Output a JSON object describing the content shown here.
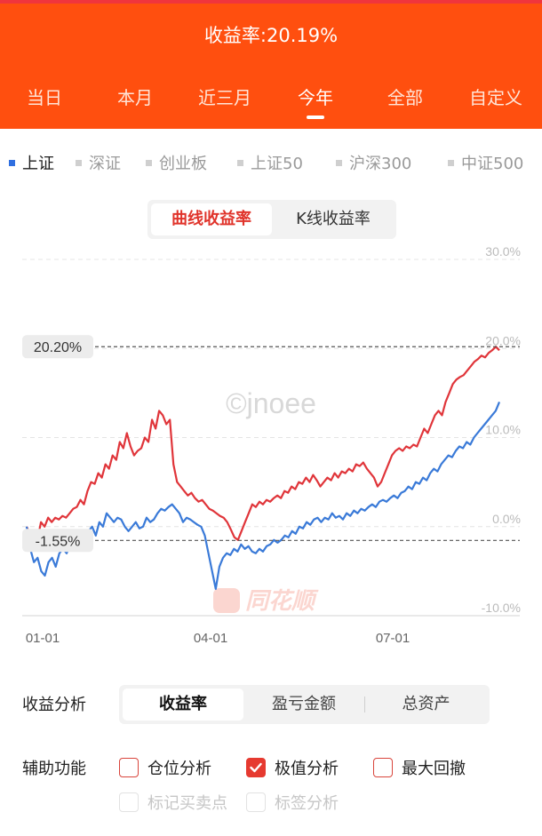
{
  "header": {
    "title": "收益率:20.19%",
    "period_tabs": [
      "当日",
      "本月",
      "近三月",
      "今年",
      "全部",
      "自定义"
    ],
    "active_period_tab": "今年"
  },
  "index_tabs": [
    "上证",
    "深证",
    "创业板",
    "上证50",
    "沪深300",
    "中证500"
  ],
  "active_index_tab": "上证",
  "chart_mode_tabs": [
    "曲线收益率",
    "K线收益率"
  ],
  "active_chart_mode": "曲线收益率",
  "watermark": "©jnoee",
  "logo_watermark": "同花顺",
  "chart_data": {
    "type": "line",
    "y_ticks": [
      "30.0%",
      "20.0%",
      "10.0%",
      "0.0%",
      "-10.0%"
    ],
    "ylim": [
      -10,
      30
    ],
    "x_ticks": [
      "01-01",
      "04-01",
      "07-01"
    ],
    "max_marker": {
      "label": "20.20%",
      "value": 20.2
    },
    "min_marker": {
      "label": "-1.55%",
      "value": -1.55
    },
    "series": [
      {
        "name": "收益率",
        "color": "#e0353a",
        "values": [
          0,
          -1,
          -0.5,
          -1.5,
          0.5,
          0,
          1,
          0.5,
          1,
          0.8,
          1.2,
          1,
          1.5,
          2,
          2.2,
          3,
          2.5,
          4,
          5,
          4.8,
          6,
          5.5,
          7,
          6.5,
          8,
          7.5,
          9.5,
          8.8,
          10.5,
          9,
          8,
          8.5,
          8.8,
          10,
          9.5,
          12,
          11,
          13,
          12.5,
          11.5,
          12,
          7,
          5,
          4.5,
          4,
          3.5,
          3.8,
          3.2,
          2.8,
          3,
          2.5,
          2,
          1.8,
          1.5,
          1.2,
          1,
          0.5,
          -0.3,
          -1.2,
          -1.5,
          -0.5,
          0.5,
          1.5,
          2.5,
          2.2,
          2.8,
          2.5,
          3,
          2.8,
          3.2,
          3.5,
          3.2,
          4,
          3.8,
          4.5,
          4.2,
          5,
          4.8,
          5.5,
          5,
          5.8,
          5.2,
          4.5,
          5,
          5.5,
          5.2,
          6,
          5.5,
          6.2,
          6,
          6.5,
          6.2,
          7,
          6.8,
          7.2,
          6.5,
          6,
          5.5,
          4.5,
          5,
          6,
          7,
          8,
          8.5,
          8.8,
          8.5,
          9,
          8.8,
          9.2,
          9,
          10,
          11,
          10.5,
          11.5,
          12.5,
          13,
          12.5,
          14,
          15,
          16,
          16.5,
          16.8,
          17,
          17.5,
          18,
          18.5,
          18.8,
          19.2,
          19,
          19.5,
          19.8,
          20.2,
          19.8
        ]
      },
      {
        "name": "上证",
        "color": "#3a7ad8",
        "values": [
          0,
          -2.5,
          -4,
          -3.5,
          -5,
          -5.5,
          -4,
          -3.5,
          -4.5,
          -3,
          -2.5,
          -3,
          -2,
          -2.5,
          -1.5,
          -2,
          -1,
          -0.5,
          0,
          -1,
          0.5,
          0,
          1.5,
          1,
          0.5,
          1,
          0.8,
          0,
          -0.5,
          0,
          0.5,
          -0.2,
          0,
          1,
          0.5,
          0.8,
          1.5,
          2,
          1.8,
          2.2,
          2.5,
          2,
          1.5,
          0.5,
          1,
          0.8,
          0.5,
          0.2,
          0,
          -1,
          -3,
          -5,
          -7,
          -4.5,
          -3.5,
          -3,
          -3.2,
          -2.5,
          -2.8,
          -2,
          -2.5,
          -2.2,
          -2.8,
          -3,
          -2.5,
          -2.8,
          -2.2,
          -2,
          -1.5,
          -1.8,
          -1.5,
          -1,
          -1.2,
          -0.5,
          -0.8,
          0,
          -0.2,
          0.5,
          0.2,
          0.8,
          1,
          0.5,
          1,
          0.8,
          1.5,
          1,
          1.2,
          0.8,
          1.5,
          1.2,
          1.8,
          1.5,
          2,
          1.8,
          2.2,
          2.5,
          2.2,
          2.8,
          3,
          2.8,
          3.2,
          3.5,
          3.2,
          3.8,
          4,
          4.5,
          4.2,
          5,
          4.8,
          5.5,
          5.2,
          6,
          6.5,
          6.2,
          7,
          7.5,
          8,
          7.8,
          8.5,
          9,
          8.8,
          9.5,
          9.2,
          10,
          10.5,
          11,
          11.5,
          12,
          12.5,
          13,
          14
        ]
      }
    ]
  },
  "bottom": {
    "analysis_label": "收益分析",
    "analysis_tabs": [
      "收益率",
      "盈亏金额",
      "总资产"
    ],
    "active_analysis_tab": "收益率",
    "aux_label": "辅助功能",
    "checkboxes": [
      {
        "label": "仓位分析",
        "checked": false,
        "disabled": false
      },
      {
        "label": "极值分析",
        "checked": true,
        "disabled": false
      },
      {
        "label": "最大回撤",
        "checked": false,
        "disabled": false
      },
      {
        "label": "标记买卖点",
        "checked": false,
        "disabled": true
      },
      {
        "label": "标签分析",
        "checked": false,
        "disabled": true
      }
    ]
  }
}
